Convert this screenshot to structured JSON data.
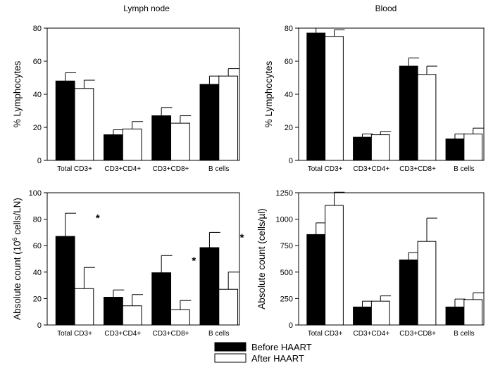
{
  "column_titles": {
    "left": "Lymph node",
    "right": "Blood"
  },
  "legend": {
    "position": "bottom-center",
    "entries": [
      {
        "label": "Before HAART",
        "color": "#000000"
      },
      {
        "label": "After HAART",
        "color": "#ffffff"
      }
    ]
  },
  "chart_data": [
    {
      "id": "ln_pct",
      "type": "bar",
      "title": "",
      "xlabel": "",
      "ylabel": "% Lymphocytes",
      "ylim": [
        0,
        80
      ],
      "yticks": [
        0,
        20,
        40,
        60,
        80
      ],
      "categories": [
        "Total CD3+",
        "CD3+CD4+",
        "CD3+CD8+",
        "B cells"
      ],
      "series": [
        {
          "name": "Before HAART",
          "values": [
            48,
            15.5,
            27,
            46
          ],
          "errors": [
            5,
            3,
            5,
            5
          ]
        },
        {
          "name": "After HAART",
          "values": [
            43.5,
            19,
            22.5,
            51
          ],
          "errors": [
            5,
            4.5,
            4.5,
            4.5
          ]
        }
      ],
      "annotations": []
    },
    {
      "id": "bl_pct",
      "type": "bar",
      "title": "",
      "xlabel": "",
      "ylabel": "% Lymphocytes",
      "ylim": [
        0,
        80
      ],
      "yticks": [
        0,
        20,
        40,
        60,
        80
      ],
      "categories": [
        "Total CD3+",
        "CD3+CD4+",
        "CD3+CD8+",
        "B cells"
      ],
      "series": [
        {
          "name": "Before HAART",
          "values": [
            77,
            14,
            57,
            13
          ],
          "errors": [
            3,
            2,
            5,
            3
          ]
        },
        {
          "name": "After HAART",
          "values": [
            75,
            15.5,
            52,
            16
          ],
          "errors": [
            4,
            2,
            5,
            3.5
          ]
        }
      ],
      "annotations": []
    },
    {
      "id": "ln_abs",
      "type": "bar",
      "title": "",
      "xlabel": "",
      "ylabel": "Absolute count (10",
      "ylabel_sup": "6",
      "ylabel_rest": " cells/LN)",
      "ylim": [
        0,
        100
      ],
      "yticks": [
        0,
        20,
        40,
        60,
        80,
        100
      ],
      "categories": [
        "Total CD3+",
        "CD3+CD4+",
        "CD3+CD8+",
        "B cells"
      ],
      "series": [
        {
          "name": "Before HAART",
          "values": [
            67,
            21,
            39.5,
            58.5
          ],
          "errors": [
            17.5,
            5.5,
            13,
            11.5
          ]
        },
        {
          "name": "After HAART",
          "values": [
            27.5,
            14.5,
            11.5,
            27
          ],
          "errors": [
            16,
            8.5,
            7,
            13
          ]
        }
      ],
      "annotations": [
        {
          "category": 0,
          "text": "*"
        },
        {
          "category": 2,
          "text": "*"
        },
        {
          "category": 3,
          "text": "*"
        }
      ]
    },
    {
      "id": "bl_abs",
      "type": "bar",
      "title": "",
      "xlabel": "",
      "ylabel": "Absolute count (cells/µl)",
      "ylim": [
        0,
        1250
      ],
      "yticks": [
        0,
        250,
        500,
        750,
        1000,
        1250
      ],
      "categories": [
        "Total CD3+",
        "CD3+CD4+",
        "CD3+CD8+",
        "B cells"
      ],
      "series": [
        {
          "name": "Before HAART",
          "values": [
            855,
            170,
            615,
            170
          ],
          "errors": [
            110,
            55,
            70,
            75
          ]
        },
        {
          "name": "After HAART",
          "values": [
            1130,
            225,
            790,
            240
          ],
          "errors": [
            125,
            50,
            220,
            65
          ]
        }
      ],
      "annotations": []
    }
  ]
}
